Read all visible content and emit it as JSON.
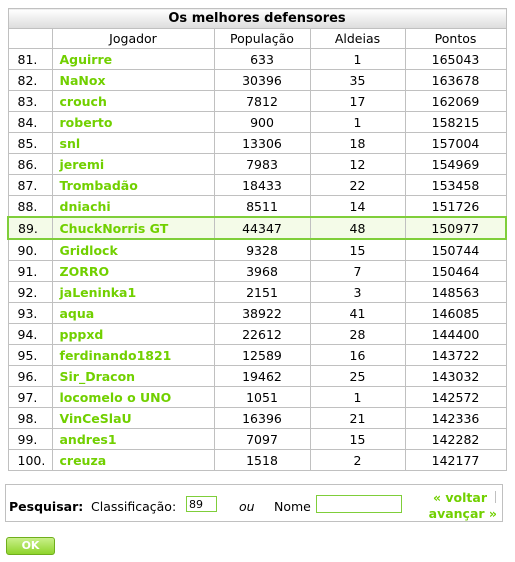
{
  "table": {
    "title": "Os melhores defensores",
    "columns": [
      "Jogador",
      "População",
      "Aldeias",
      "Pontos"
    ],
    "highlight_rank": "89.",
    "rows": [
      {
        "rank": "81.",
        "player": "Aguirre",
        "population": "633",
        "villages": "1",
        "points": "165043"
      },
      {
        "rank": "82.",
        "player": "NaNox",
        "population": "30396",
        "villages": "35",
        "points": "163678"
      },
      {
        "rank": "83.",
        "player": "crouch",
        "population": "7812",
        "villages": "17",
        "points": "162069"
      },
      {
        "rank": "84.",
        "player": "roberto",
        "population": "900",
        "villages": "1",
        "points": "158215"
      },
      {
        "rank": "85.",
        "player": "snl",
        "population": "13306",
        "villages": "18",
        "points": "157004"
      },
      {
        "rank": "86.",
        "player": "jeremi",
        "population": "7983",
        "villages": "12",
        "points": "154969"
      },
      {
        "rank": "87.",
        "player": "Trombadão",
        "population": "18433",
        "villages": "22",
        "points": "153458"
      },
      {
        "rank": "88.",
        "player": "dniachi",
        "population": "8511",
        "villages": "14",
        "points": "151726"
      },
      {
        "rank": "89.",
        "player": "ChuckNorris GT",
        "population": "44347",
        "villages": "48",
        "points": "150977"
      },
      {
        "rank": "90.",
        "player": "Gridlock",
        "population": "9328",
        "villages": "15",
        "points": "150744"
      },
      {
        "rank": "91.",
        "player": "ZORRO",
        "population": "3968",
        "villages": "7",
        "points": "150464"
      },
      {
        "rank": "92.",
        "player": "jaLeninka1",
        "population": "2151",
        "villages": "3",
        "points": "148563"
      },
      {
        "rank": "93.",
        "player": "aqua",
        "population": "38922",
        "villages": "41",
        "points": "146085"
      },
      {
        "rank": "94.",
        "player": "pppxd",
        "population": "22612",
        "villages": "28",
        "points": "144400"
      },
      {
        "rank": "95.",
        "player": "ferdinando1821",
        "population": "12589",
        "villages": "16",
        "points": "143722"
      },
      {
        "rank": "96.",
        "player": "Sir_Dracon",
        "population": "19462",
        "villages": "25",
        "points": "143032"
      },
      {
        "rank": "97.",
        "player": "locomelo o UNO",
        "population": "1051",
        "villages": "1",
        "points": "142572"
      },
      {
        "rank": "98.",
        "player": "VinCeSlaU",
        "population": "16396",
        "villages": "21",
        "points": "142336"
      },
      {
        "rank": "99.",
        "player": "andres1",
        "population": "7097",
        "villages": "15",
        "points": "142282"
      },
      {
        "rank": "100.",
        "player": "creuza",
        "population": "1518",
        "villages": "2",
        "points": "142177"
      }
    ]
  },
  "search": {
    "label": "Pesquisar:",
    "rank_label": "Classificação:",
    "rank_value": "89",
    "or_label": "ou",
    "name_label": "Nome",
    "name_value": "",
    "back_link": "« voltar",
    "forward_link": "avançar »"
  },
  "ok_button": "OK",
  "colors": {
    "accent": "#71d000",
    "highlight_border": "#7fce3a",
    "border": "#c0c0c0"
  }
}
